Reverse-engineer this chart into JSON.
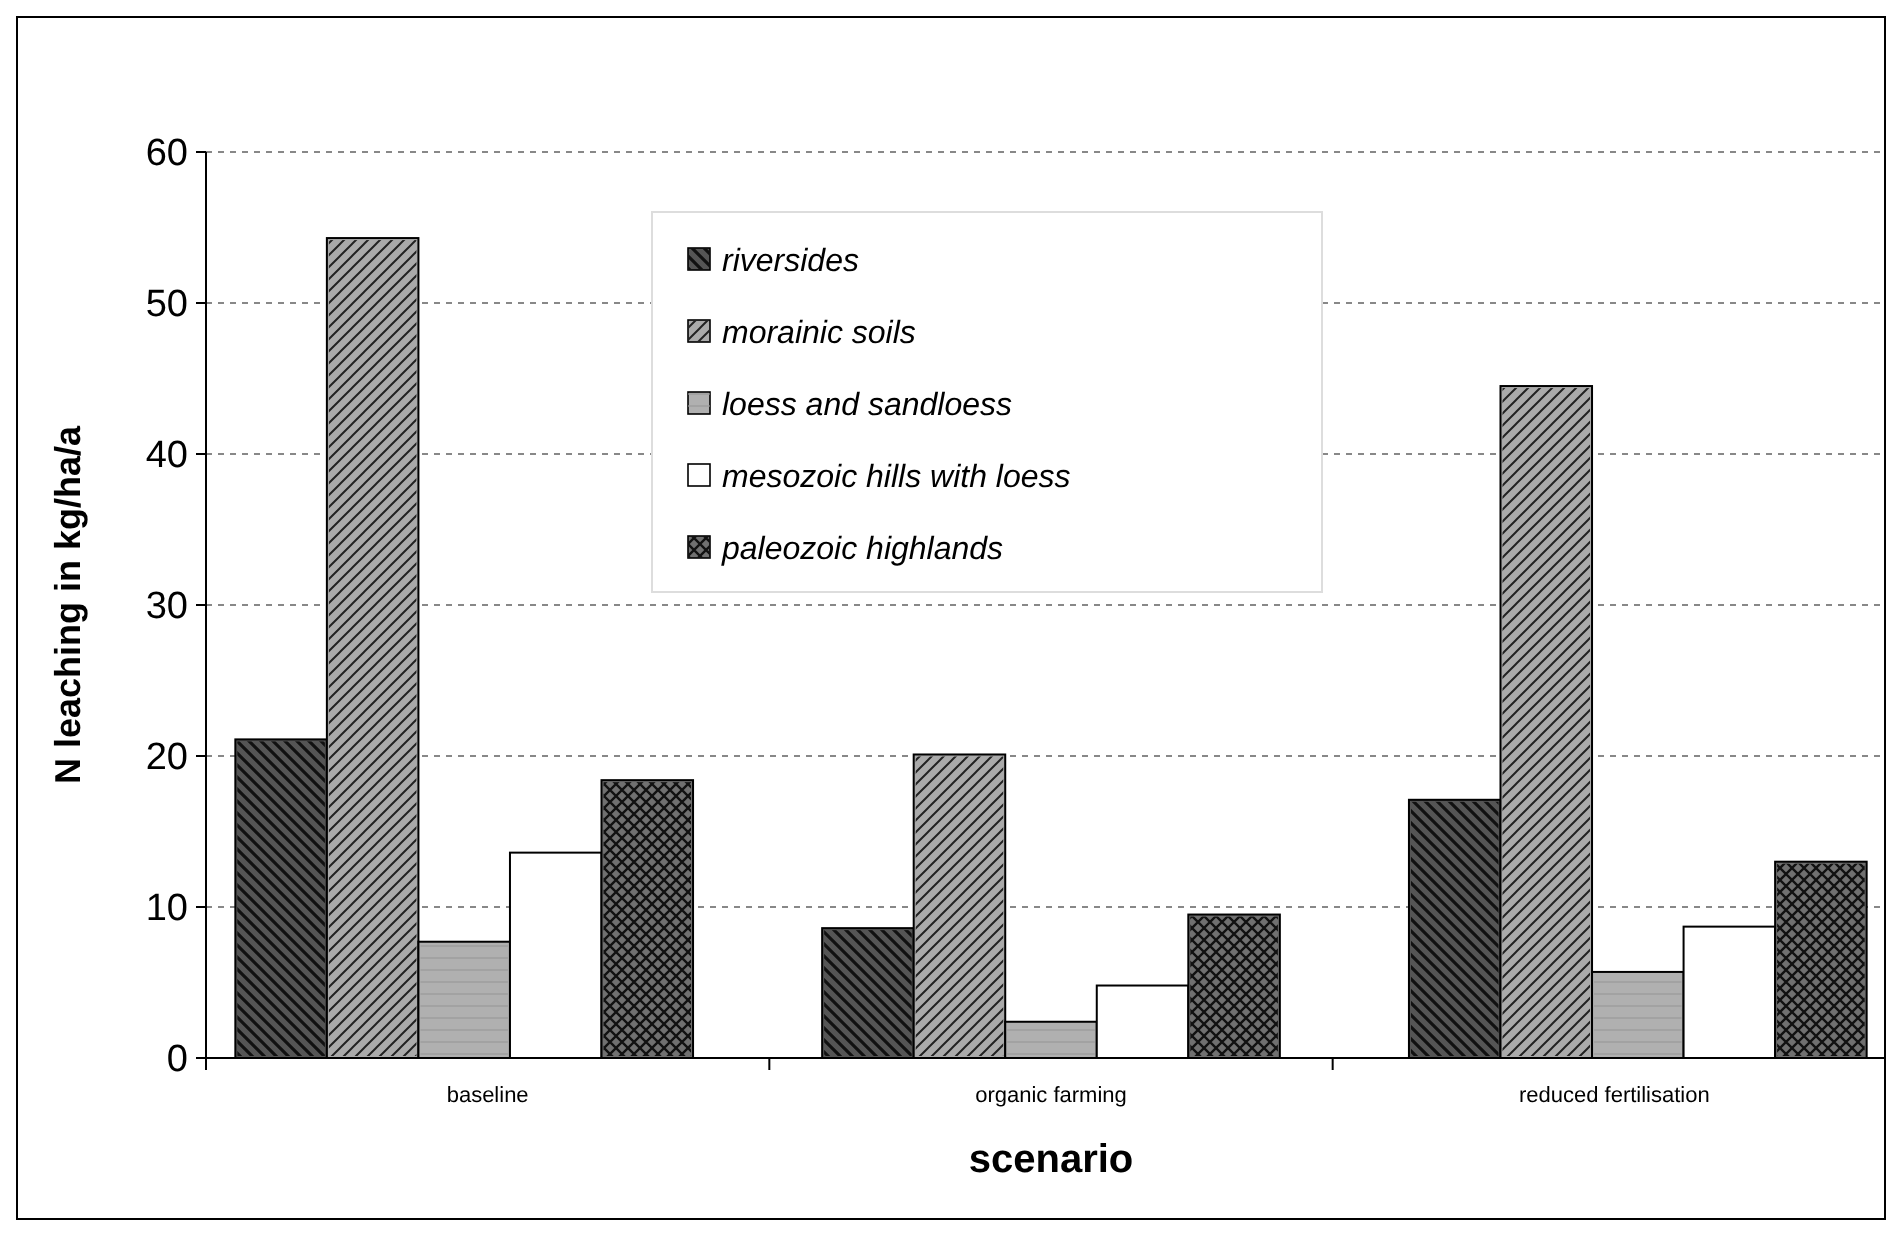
{
  "chart_data": {
    "type": "bar",
    "xlabel": "scenario",
    "ylabel": "N leaching in kg/ha/a",
    "categories": [
      "baseline",
      "organic farming",
      "reduced fertilisation"
    ],
    "series": [
      {
        "name": "riversides",
        "color": "#555555",
        "values": [
          21.1,
          8.6,
          17.1
        ]
      },
      {
        "name": "morainic soils",
        "color": "#aaaaaa",
        "values": [
          54.3,
          20.1,
          44.5
        ]
      },
      {
        "name": "loess and sandloess",
        "color": "#b0b0b0",
        "values": [
          7.7,
          2.4,
          5.7
        ]
      },
      {
        "name": "mesozoic hills with loess",
        "color": "#ffffff",
        "values": [
          13.6,
          4.8,
          8.7
        ]
      },
      {
        "name": "paleozoic highlands",
        "color": "#707070",
        "values": [
          18.4,
          9.5,
          13
        ]
      }
    ],
    "ylim": [
      0,
      60
    ],
    "yticks": [
      0,
      10,
      20,
      30,
      40,
      50,
      60
    ],
    "grid": "y",
    "legend": "top"
  }
}
